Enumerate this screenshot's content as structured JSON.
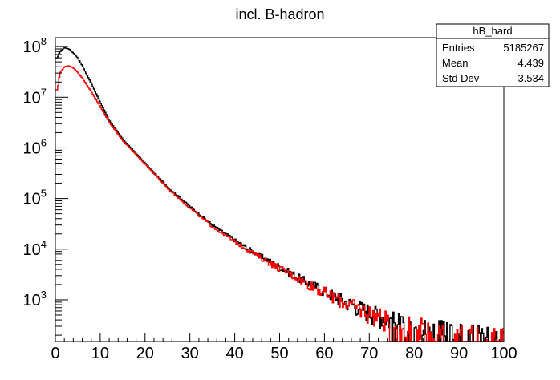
{
  "chart_data": {
    "type": "line",
    "title": "incl. B-hadron",
    "xlabel": "",
    "ylabel": "",
    "xlim": [
      0,
      100
    ],
    "ylim": [
      150,
      150000000
    ],
    "y_scale": "log",
    "grid": false,
    "x_ticks": [
      "0",
      "10",
      "20",
      "30",
      "40",
      "50",
      "60",
      "70",
      "80",
      "90",
      "100"
    ],
    "y_ticks": [
      {
        "base": "10",
        "exp": "3",
        "value": 1000
      },
      {
        "base": "10",
        "exp": "4",
        "value": 10000
      },
      {
        "base": "10",
        "exp": "5",
        "value": 100000
      },
      {
        "base": "10",
        "exp": "6",
        "value": 1000000
      },
      {
        "base": "10",
        "exp": "7",
        "value": 10000000
      },
      {
        "base": "10",
        "exp": "8",
        "value": 100000000
      }
    ],
    "stats_box": {
      "name": "hB_hard",
      "rows": [
        {
          "label": "Entries",
          "value": "5185267"
        },
        {
          "label": "Mean",
          "value": "4.439"
        },
        {
          "label": "Std Dev",
          "value": "3.534"
        }
      ]
    },
    "series": [
      {
        "color": "#000000",
        "x": [
          0.5,
          1,
          2,
          3,
          4,
          5,
          6,
          8,
          10,
          12,
          15,
          20,
          25,
          30,
          35,
          40,
          45,
          50,
          55,
          60,
          65,
          70,
          75,
          80,
          85,
          90,
          95,
          99
        ],
        "y": [
          60000000,
          80000000,
          95000000,
          90000000,
          75000000,
          60000000,
          42000000,
          19000000,
          8000000,
          3500000,
          1500000,
          500000,
          170000,
          70000,
          30000,
          15000,
          8000,
          4500,
          2500,
          1500,
          900,
          600,
          400,
          300,
          250,
          200,
          180,
          160
        ]
      },
      {
        "color": "#ff0000",
        "x": [
          0.5,
          1,
          2,
          3,
          4,
          5,
          6,
          8,
          10,
          12,
          15,
          20,
          25,
          30,
          35,
          40,
          45,
          50,
          55,
          60,
          65,
          70,
          75,
          80,
          85,
          90,
          95,
          99
        ],
        "y": [
          14000000,
          30000000,
          40000000,
          42000000,
          38000000,
          31000000,
          24000000,
          13000000,
          6500000,
          3200000,
          1400000,
          480000,
          160000,
          65000,
          28000,
          14000,
          7500,
          4200,
          2400,
          1400,
          850,
          550,
          380,
          290,
          240,
          200,
          180,
          160
        ]
      }
    ]
  }
}
